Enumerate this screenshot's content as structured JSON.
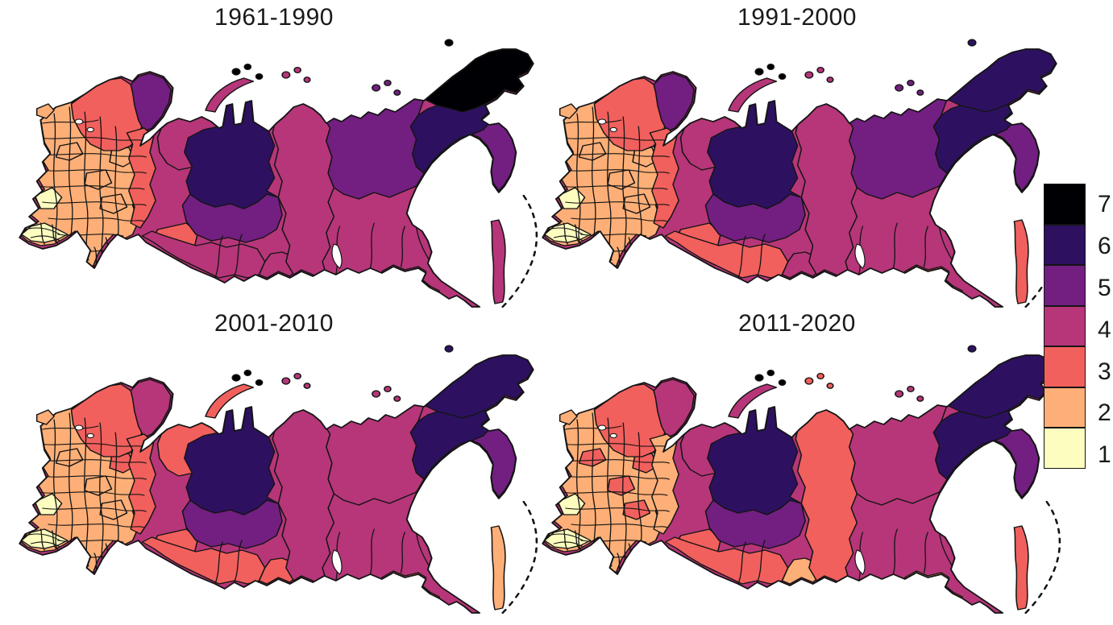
{
  "figure": {
    "background": "#ffffff",
    "description_semantics": "choropleth-maps-of-russian-regions-four-periods"
  },
  "maps": [
    {
      "id": "map-1961-1990",
      "title": "1961-1990"
    },
    {
      "id": "map-1991-2000",
      "title": "1991-2000"
    },
    {
      "id": "map-2001-2010",
      "title": "2001-2010"
    },
    {
      "id": "map-2011-2020",
      "title": "2011-2020"
    }
  ],
  "palette": {
    "1": "#FCFDBF",
    "2": "#FEAF77",
    "3": "#F1605D",
    "4": "#B63679",
    "5": "#721F81",
    "6": "#2D1160",
    "7": "#000004"
  },
  "legend": {
    "entries": [
      {
        "value": "7",
        "color": "#000004"
      },
      {
        "value": "6",
        "color": "#2D1160"
      },
      {
        "value": "5",
        "color": "#721F81"
      },
      {
        "value": "4",
        "color": "#B63679"
      },
      {
        "value": "3",
        "color": "#F1605D"
      },
      {
        "value": "2",
        "color": "#FEAF77"
      },
      {
        "value": "1",
        "color": "#FCFDBF"
      }
    ]
  },
  "regions": {
    "base": [
      4,
      4,
      4,
      4
    ],
    "european": [
      2,
      2,
      2,
      2
    ],
    "belgorod": [
      1,
      1,
      1,
      1
    ],
    "caucasus": [
      1,
      1,
      1,
      1
    ],
    "kaliningrad": [
      2,
      2,
      2,
      2
    ],
    "karelia": [
      3,
      3,
      3,
      3
    ],
    "kola": [
      5,
      5,
      4,
      4
    ],
    "dvina": [
      4,
      4,
      3,
      4
    ],
    "eur_a": [
      2,
      2,
      2,
      3
    ],
    "eur_b": [
      2,
      2,
      2,
      3
    ],
    "eur_c": [
      2,
      2,
      3,
      3
    ],
    "eur_d": [
      2,
      2,
      2,
      3
    ],
    "ural": [
      3,
      3,
      3,
      2
    ],
    "tyumen": [
      3,
      3,
      3,
      3
    ],
    "south_belt": [
      4,
      3,
      3,
      3
    ],
    "altai": [
      4,
      4,
      3,
      2
    ],
    "yamal": [
      6,
      6,
      6,
      6
    ],
    "khanty": [
      5,
      5,
      5,
      5
    ],
    "krasnoyarsk": [
      4,
      4,
      4,
      3
    ],
    "yakutia": [
      5,
      5,
      4,
      4
    ],
    "chukotka": [
      7,
      6,
      6,
      6
    ],
    "magadan": [
      6,
      6,
      6,
      6
    ],
    "kamchatka": [
      5,
      5,
      5,
      5
    ],
    "amur": [
      4,
      3,
      3,
      2
    ],
    "jewish": [
      3,
      3,
      3,
      3
    ],
    "sakhalin": [
      4,
      3,
      2,
      3
    ],
    "novaya_zemlya": [
      4,
      4,
      3,
      4
    ],
    "franz_josef": [
      7,
      7,
      7,
      7
    ],
    "severnaya_zemlya": [
      4,
      4,
      4,
      3
    ],
    "new_siberian": [
      5,
      5,
      4,
      4
    ],
    "wrangel": [
      7,
      6,
      6,
      6
    ]
  }
}
